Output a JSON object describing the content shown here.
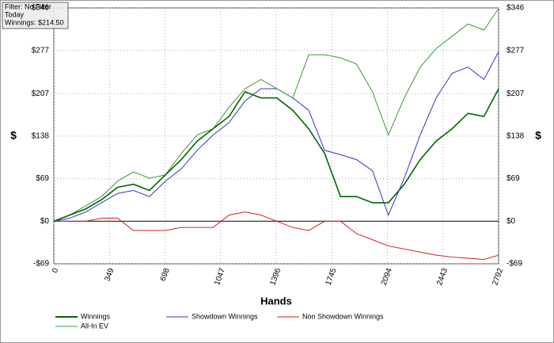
{
  "chart_data": {
    "type": "line",
    "annotations": [
      "Filter: No Filter",
      "Today",
      "Winnings: $214.50"
    ],
    "x_label": "Hands",
    "y_label": "$",
    "x": [
      0,
      100,
      200,
      300,
      400,
      500,
      600,
      700,
      800,
      900,
      1000,
      1100,
      1200,
      1300,
      1400,
      1500,
      1600,
      1700,
      1800,
      1900,
      2000,
      2100,
      2200,
      2300,
      2400,
      2500,
      2600,
      2700,
      2792
    ],
    "series": [
      {
        "name": "Winnings",
        "color": "#006400",
        "values": [
          0,
          10,
          20,
          35,
          55,
          60,
          50,
          75,
          100,
          130,
          150,
          170,
          210,
          200,
          200,
          180,
          150,
          110,
          40,
          40,
          30,
          30,
          60,
          100,
          130,
          150,
          175,
          170,
          215
        ]
      },
      {
        "name": "Showdown Winnings",
        "color": "#3333cc",
        "values": [
          0,
          5,
          15,
          30,
          45,
          50,
          40,
          65,
          85,
          115,
          140,
          160,
          195,
          215,
          215,
          200,
          180,
          115,
          108,
          100,
          82,
          10,
          70,
          140,
          200,
          240,
          250,
          230,
          275
        ]
      },
      {
        "name": "Non Showdown Winnings",
        "color": "#cc2222",
        "values": [
          0,
          0,
          0,
          5,
          5,
          -15,
          -15,
          -15,
          -10,
          -10,
          -10,
          10,
          15,
          10,
          0,
          -10,
          -15,
          0,
          0,
          -20,
          -30,
          -40,
          -45,
          -50,
          -55,
          -58,
          -60,
          -62,
          -55
        ]
      },
      {
        "name": "All-In EV",
        "color": "#3a9a3a",
        "values": [
          0,
          10,
          25,
          40,
          65,
          80,
          70,
          75,
          110,
          140,
          150,
          185,
          215,
          230,
          215,
          200,
          270,
          270,
          265,
          255,
          210,
          140,
          200,
          250,
          280,
          300,
          320,
          310,
          345
        ]
      }
    ],
    "xlim": [
      0,
      2792
    ],
    "xticks": [
      0,
      349,
      698,
      1047,
      1396,
      1745,
      2094,
      2443,
      2792
    ],
    "ylim": [
      -69,
      346
    ],
    "yticks": [
      {
        "value": -69,
        "label": "-$69"
      },
      {
        "value": 0,
        "label": "$0"
      },
      {
        "value": 69,
        "label": "$69"
      },
      {
        "value": 138,
        "label": "$138"
      },
      {
        "value": 207,
        "label": "$207"
      },
      {
        "value": 277,
        "label": "$277"
      },
      {
        "value": 346,
        "label": "$346"
      }
    ],
    "grid": true
  }
}
